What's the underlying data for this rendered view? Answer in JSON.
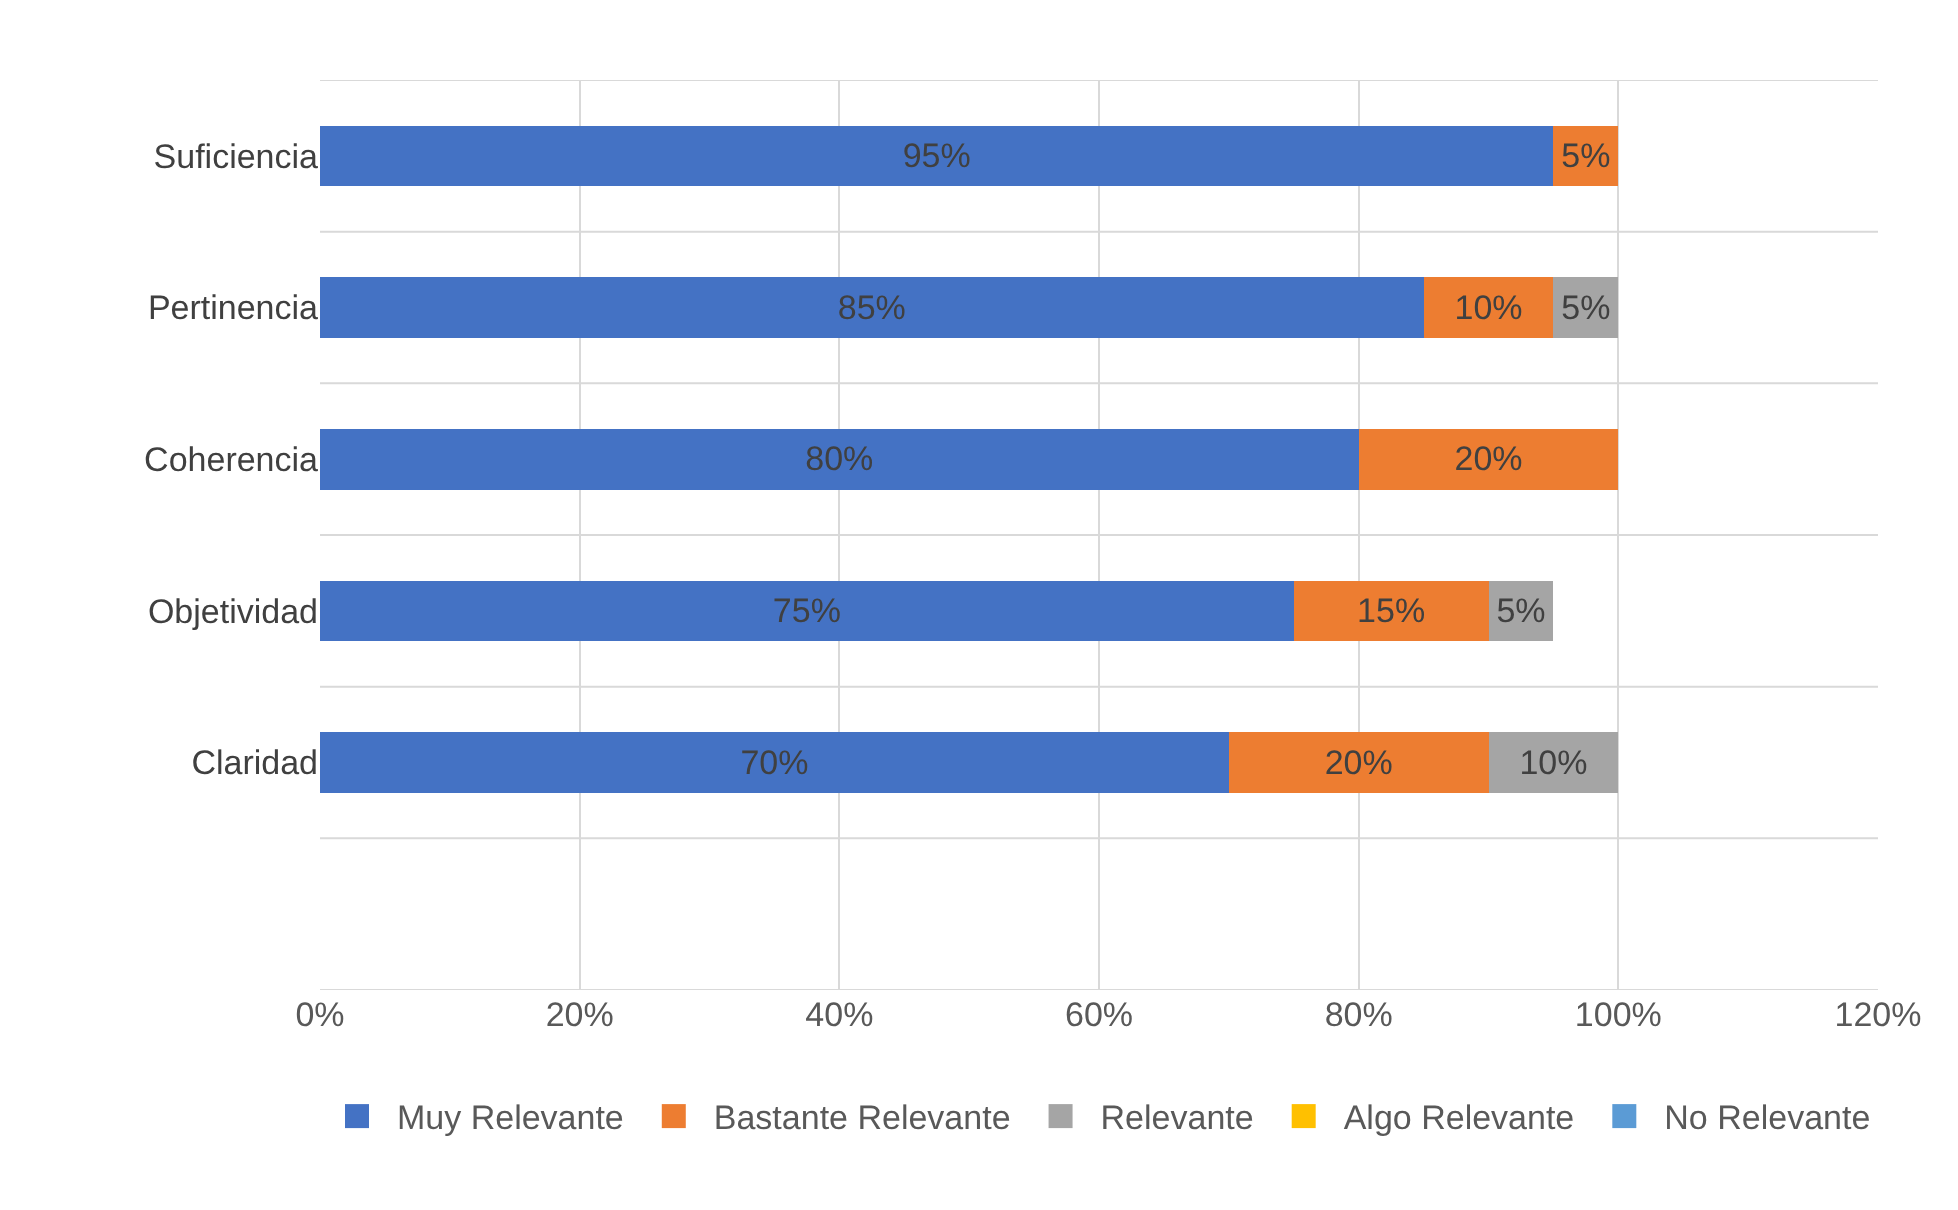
{
  "chart_data": {
    "type": "bar",
    "orientation": "horizontal",
    "stacked": true,
    "categories": [
      "Suficiencia",
      "Pertinencia",
      "Coherencia",
      "Objetividad",
      "Claridad",
      null
    ],
    "series": [
      {
        "name": "Muy Relevante",
        "color": "#4472c4",
        "values": [
          95,
          85,
          80,
          75,
          70,
          null
        ],
        "value_labels": [
          "95%",
          "85%",
          "80%",
          "75%",
          "70%",
          null
        ]
      },
      {
        "name": "Bastante Relevante",
        "color": "#ed7d31",
        "values": [
          5,
          10,
          20,
          15,
          20,
          null
        ],
        "value_labels": [
          "5%",
          "10%",
          "20%",
          "15%",
          "20%",
          null
        ]
      },
      {
        "name": "Relevante",
        "color": "#a5a5a5",
        "values": [
          null,
          5,
          null,
          5,
          10,
          null
        ],
        "value_labels": [
          null,
          "5%",
          null,
          "5%",
          "10%",
          null
        ]
      },
      {
        "name": "Algo Relevante",
        "color": "#ffc000",
        "values": [
          null,
          null,
          null,
          null,
          null,
          null
        ]
      },
      {
        "name": "No Relevante",
        "color": "#5b9bd5",
        "values": [
          null,
          null,
          null,
          null,
          null,
          null
        ]
      }
    ],
    "xlim": [
      0,
      120
    ],
    "xticks": [
      {
        "value": 0,
        "label": "0%"
      },
      {
        "value": 20,
        "label": "20%"
      },
      {
        "value": 40,
        "label": "40%"
      },
      {
        "value": 60,
        "label": "60%"
      },
      {
        "value": 80,
        "label": "80%"
      },
      {
        "value": 100,
        "label": "100%"
      },
      {
        "value": 120,
        "label": "120%"
      }
    ],
    "grid": true,
    "legend": "bottom"
  }
}
